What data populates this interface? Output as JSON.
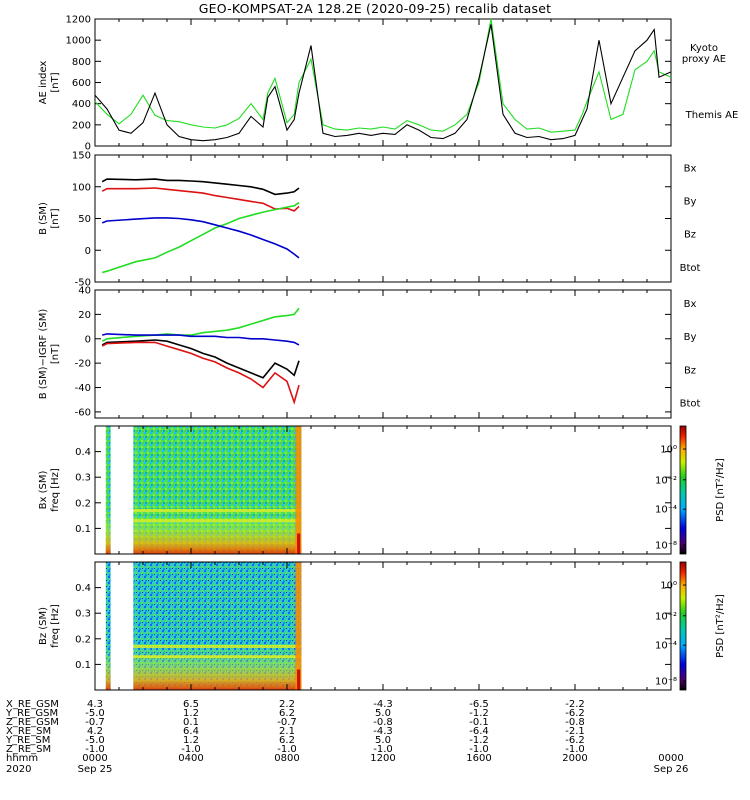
{
  "title": "GEO-KOMPSAT-2A 128.2E (2020-09-25) recalib dataset",
  "colors": {
    "kyoto": "#22dd22",
    "themis": "#000000",
    "bx": "#0000cc",
    "by": "#22dd22",
    "bz": "#dd1111",
    "btot": "#000000"
  },
  "chart_data": [
    {
      "type": "line",
      "ylabel": "AE index [nT]",
      "ylim": [
        0,
        1200
      ],
      "yticks": [
        0,
        200,
        400,
        600,
        800,
        1000,
        1200
      ],
      "xlim": [
        0,
        24
      ],
      "legend": [
        "Kyoto proxy AE",
        "Themis AE"
      ],
      "series": [
        {
          "name": "Kyoto proxy AE",
          "x": [
            0,
            0.5,
            1,
            1.5,
            2,
            2.5,
            3,
            3.5,
            4,
            4.5,
            5,
            5.5,
            6,
            6.5,
            7,
            7.2,
            7.5,
            8,
            8.3,
            8.5,
            9,
            9.5,
            10,
            10.5,
            11,
            11.5,
            12,
            12.5,
            13,
            13.5,
            14,
            14.5,
            15,
            15.5,
            16,
            16.5,
            17,
            17.5,
            18,
            18.5,
            19,
            19.5,
            20,
            20.3,
            20.5,
            21,
            21.5,
            22,
            22.5,
            23,
            23.3,
            23.5,
            24
          ],
          "y": [
            420,
            300,
            210,
            300,
            480,
            290,
            240,
            230,
            200,
            180,
            170,
            200,
            260,
            400,
            250,
            500,
            640,
            220,
            300,
            600,
            820,
            200,
            160,
            150,
            170,
            160,
            180,
            160,
            240,
            200,
            150,
            140,
            200,
            300,
            600,
            1200,
            400,
            250,
            160,
            170,
            130,
            140,
            150,
            300,
            420,
            700,
            250,
            300,
            720,
            800,
            900,
            700,
            650
          ]
        },
        {
          "name": "Themis AE",
          "x": [
            0,
            0.5,
            1,
            1.5,
            2,
            2.5,
            3,
            3.5,
            4,
            4.5,
            5,
            5.5,
            6,
            6.5,
            7,
            7.2,
            7.5,
            8,
            8.3,
            8.5,
            9,
            9.5,
            10,
            10.5,
            11,
            11.5,
            12,
            12.5,
            13,
            13.5,
            14,
            14.5,
            15,
            15.5,
            16,
            16.5,
            17,
            17.5,
            18,
            18.5,
            19,
            19.5,
            20,
            20.3,
            20.5,
            21,
            21.5,
            22,
            22.5,
            23,
            23.3,
            23.5,
            24
          ],
          "y": [
            480,
            350,
            150,
            120,
            220,
            500,
            200,
            90,
            60,
            50,
            60,
            80,
            120,
            280,
            180,
            460,
            560,
            150,
            250,
            500,
            950,
            120,
            90,
            100,
            120,
            100,
            120,
            110,
            200,
            150,
            80,
            70,
            120,
            250,
            640,
            1150,
            300,
            120,
            80,
            90,
            60,
            70,
            100,
            250,
            350,
            1000,
            400,
            650,
            900,
            1000,
            1100,
            650,
            700
          ]
        }
      ]
    },
    {
      "type": "line",
      "ylabel": "B (SM) [nT]",
      "ylim": [
        -50,
        150
      ],
      "yticks": [
        -50,
        0,
        50,
        100,
        150
      ],
      "xlim": [
        0,
        24
      ],
      "legend": [
        "Bx",
        "By",
        "Bz",
        "Btot"
      ],
      "series": [
        {
          "name": "Btot",
          "x": [
            0.3,
            0.5,
            1.7,
            2.5,
            3,
            3.5,
            4,
            4.5,
            5,
            5.5,
            6,
            6.5,
            7,
            7.5,
            8,
            8.3,
            8.5
          ],
          "y": [
            108,
            112,
            111,
            112,
            110,
            110,
            109,
            108,
            106,
            104,
            102,
            100,
            96,
            88,
            90,
            92,
            98
          ]
        },
        {
          "name": "Bz",
          "x": [
            0.3,
            0.5,
            1.7,
            2.5,
            3,
            3.5,
            4,
            4.5,
            5,
            5.5,
            6,
            6.5,
            7,
            7.5,
            8,
            8.3,
            8.5
          ],
          "y": [
            93,
            97,
            97,
            98,
            96,
            94,
            92,
            90,
            86,
            83,
            80,
            77,
            74,
            65,
            66,
            62,
            69
          ]
        },
        {
          "name": "By",
          "x": [
            0.3,
            0.5,
            1.7,
            2.5,
            3,
            3.5,
            4,
            4.5,
            5,
            5.5,
            6,
            6.5,
            7,
            7.5,
            8,
            8.3,
            8.5
          ],
          "y": [
            -35,
            -33,
            -18,
            -12,
            -3,
            5,
            15,
            25,
            35,
            42,
            50,
            55,
            60,
            64,
            68,
            70,
            75
          ]
        },
        {
          "name": "Bx",
          "x": [
            0.3,
            0.5,
            1.7,
            2.5,
            3,
            3.5,
            4,
            4.5,
            5,
            5.5,
            6,
            6.5,
            7,
            7.5,
            8,
            8.3,
            8.5
          ],
          "y": [
            43,
            46,
            49,
            51,
            51,
            50,
            48,
            45,
            40,
            35,
            30,
            24,
            17,
            10,
            2,
            -6,
            -12
          ]
        }
      ]
    },
    {
      "type": "line",
      "ylabel": "B (SM)-IGRF (SM) [nT]",
      "ylim": [
        -65,
        40
      ],
      "yticks": [
        -60,
        -40,
        -20,
        0,
        20,
        40
      ],
      "xlim": [
        0,
        24
      ],
      "legend": [
        "Bx",
        "By",
        "Bz",
        "Btot"
      ],
      "series": [
        {
          "name": "By",
          "x": [
            0.3,
            0.5,
            1.7,
            2.5,
            3,
            3.5,
            4,
            4.5,
            5,
            5.5,
            6,
            6.5,
            7,
            7.5,
            8,
            8.3,
            8.5
          ],
          "y": [
            -2,
            0,
            2,
            3,
            4,
            3,
            3,
            5,
            6,
            7,
            9,
            12,
            15,
            18,
            19,
            20,
            25
          ]
        },
        {
          "name": "Bx",
          "x": [
            0.3,
            0.5,
            1.7,
            2.5,
            3,
            3.5,
            4,
            4.5,
            5,
            5.5,
            6,
            6.5,
            7,
            7.5,
            8,
            8.3,
            8.5
          ],
          "y": [
            3,
            4,
            3,
            3,
            3,
            3,
            2,
            2,
            2,
            1,
            1,
            0,
            0,
            -1,
            -2,
            -3,
            -5
          ]
        },
        {
          "name": "Btot",
          "x": [
            0.3,
            0.5,
            1.7,
            2.5,
            3,
            3.5,
            4,
            4.5,
            5,
            5.5,
            6,
            6.5,
            7,
            7.5,
            8,
            8.3,
            8.5
          ],
          "y": [
            -5,
            -3,
            -2,
            -1,
            -2,
            -5,
            -8,
            -12,
            -15,
            -20,
            -24,
            -28,
            -32,
            -20,
            -25,
            -30,
            -18
          ]
        },
        {
          "name": "Bz",
          "x": [
            0.3,
            0.5,
            1.7,
            2.5,
            3,
            3.5,
            4,
            4.5,
            5,
            5.5,
            6,
            6.5,
            7,
            7.5,
            8,
            8.3,
            8.5
          ],
          "y": [
            -6,
            -4,
            -3,
            -3,
            -6,
            -9,
            -12,
            -16,
            -19,
            -24,
            -28,
            -33,
            -40,
            -28,
            -35,
            -52,
            -38
          ]
        }
      ]
    },
    {
      "type": "heatmap",
      "ylabel": "Bx (SM) freq [Hz]",
      "ylim": [
        0,
        0.5
      ],
      "yticks": [
        0.1,
        0.2,
        0.3,
        0.4
      ],
      "xlim": [
        0,
        24
      ],
      "data_hours": [
        [
          0.45,
          0.65
        ],
        [
          1.6,
          8.6
        ]
      ],
      "colorbar": {
        "label": "PSD [nT²/Hz]",
        "ticks": [
          "10⁰",
          "10⁻²",
          "10⁻⁴",
          "10⁻⁸"
        ]
      }
    },
    {
      "type": "heatmap",
      "ylabel": "Bz (SM) freq [Hz]",
      "ylim": [
        0,
        0.5
      ],
      "yticks": [
        0.1,
        0.2,
        0.3,
        0.4
      ],
      "xlim": [
        0,
        24
      ],
      "data_hours": [
        [
          0.45,
          0.65
        ],
        [
          1.6,
          8.6
        ]
      ],
      "colorbar": {
        "label": "PSD [nT²/Hz]",
        "ticks": [
          "10⁰",
          "10⁻²",
          "10⁻⁴",
          "10⁻⁸"
        ]
      }
    }
  ],
  "panel_labels": {
    "ae": {
      "ylabel_line1": "AE index",
      "ylabel_line2": "[nT]",
      "kyoto_line1": "Kyoto",
      "kyoto_line2": "proxy AE",
      "themis": "Themis AE"
    },
    "b": {
      "ylabel_line1": "B (SM)",
      "ylabel_line2": "[nT]",
      "bx": "Bx",
      "by": "By",
      "bz": "Bz",
      "btot": "Btot"
    },
    "db": {
      "ylabel_line1": "B (SM)−IGRF (SM)",
      "ylabel_line2": "[nT]",
      "bx": "Bx",
      "by": "By",
      "bz": "Bz",
      "btot": "Btot"
    },
    "sx": {
      "ylabel_line1": "Bx (SM)",
      "ylabel_line2": "freq [Hz]",
      "psd": "PSD [nT²/Hz]"
    },
    "sz": {
      "ylabel_line1": "Bz (SM)",
      "ylabel_line2": "freq [Hz]",
      "psd": "PSD [nT²/Hz]"
    }
  },
  "ephemeris": {
    "row_labels": [
      "X_RE_GSM",
      "Y_RE_GSM",
      "Z_RE_GSM",
      "X_RE_SM",
      "Y_RE_SM",
      "Z_RE_SM",
      "hhmm",
      "2020"
    ],
    "columns": [
      [
        "4.3",
        "-5.0",
        "-0.7",
        "4.2",
        "-5.0",
        "-1.0",
        "0000",
        "Sep 25"
      ],
      [
        "6.5",
        "1.2",
        "0.1",
        "6.4",
        "1.2",
        "-1.0",
        "0400",
        ""
      ],
      [
        "2.2",
        "6.2",
        "-0.7",
        "2.1",
        "6.2",
        "-1.0",
        "0800",
        ""
      ],
      [
        "-4.3",
        "5.0",
        "-0.8",
        "-4.3",
        "5.0",
        "-1.0",
        "1200",
        ""
      ],
      [
        "-6.5",
        "-1.2",
        "-0.1",
        "-6.4",
        "-1.2",
        "-1.0",
        "1600",
        ""
      ],
      [
        "-2.2",
        "-6.2",
        "-0.8",
        "-2.1",
        "-6.2",
        "-1.0",
        "2000",
        ""
      ],
      [
        "",
        "",
        "",
        "",
        "",
        "",
        "0000",
        "Sep 26"
      ]
    ]
  }
}
